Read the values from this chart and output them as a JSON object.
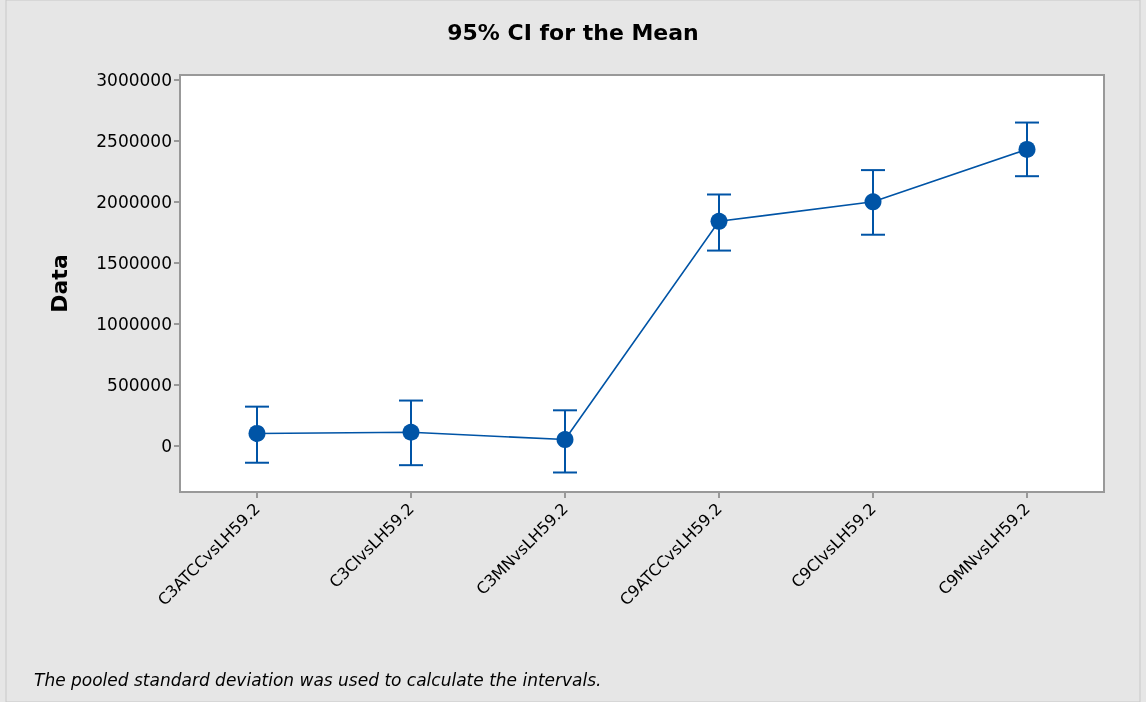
{
  "chart_data": {
    "type": "line",
    "title": "95% CI for the Mean",
    "ylabel": "Data",
    "categories": [
      "C3ATCCvsLH59.2",
      "C3CIvsLH59.2",
      "C3MNvsLH59.2",
      "C9ATCCvsLH59.2",
      "C9CIvsLH59.2",
      "C9MNvsLH59.2"
    ],
    "series": [
      {
        "color": "#0054a6",
        "values": [
          100000,
          110000,
          50000,
          1840000,
          2000000,
          2430000
        ],
        "errors": [
          [
            -140000,
            320000
          ],
          [
            -160000,
            370000
          ],
          [
            -220000,
            290000
          ],
          [
            1600000,
            2060000
          ],
          [
            1730000,
            2260000
          ],
          [
            2210000,
            2650000
          ]
        ]
      }
    ],
    "ylim": [
      -380000,
      3040000
    ],
    "yticks": [
      0,
      500000,
      1000000,
      1500000,
      2000000,
      2500000,
      3000000
    ],
    "marker": "circle",
    "line_style": "solid",
    "grid": false,
    "annotations": [
      "The pooled standard deviation was used to calculate the intervals."
    ]
  }
}
